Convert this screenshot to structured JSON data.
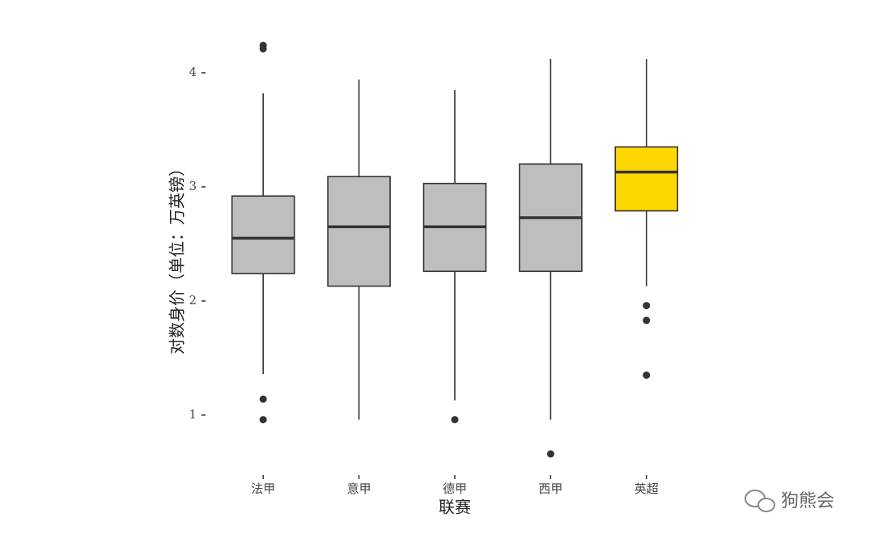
{
  "chart_data": {
    "type": "boxplot",
    "y_label": "对数身价（单位：万英镑）",
    "x_label": "联赛",
    "watermark": "狗熊会",
    "categories": [
      "法甲",
      "意甲",
      "德甲",
      "西甲",
      "英超"
    ],
    "boxes": [
      {
        "color": "#bebebe",
        "whisker_low": 1.36,
        "q1": 2.24,
        "median": 2.55,
        "q3": 2.92,
        "whisker_high": 3.82,
        "outliers": [
          4.24,
          4.21,
          1.14,
          0.96
        ]
      },
      {
        "color": "#bebebe",
        "whisker_low": 0.96,
        "q1": 2.13,
        "median": 2.65,
        "q3": 3.09,
        "whisker_high": 3.94,
        "outliers": []
      },
      {
        "color": "#bebebe",
        "whisker_low": 1.13,
        "q1": 2.26,
        "median": 2.65,
        "q3": 3.03,
        "whisker_high": 3.85,
        "outliers": [
          0.96
        ]
      },
      {
        "color": "#bebebe",
        "whisker_low": 0.96,
        "q1": 2.26,
        "median": 2.73,
        "q3": 3.2,
        "whisker_high": 4.12,
        "outliers": [
          0.66
        ]
      },
      {
        "color": "#ffd700",
        "whisker_low": 2.13,
        "q1": 2.79,
        "median": 3.13,
        "q3": 3.35,
        "whisker_high": 4.12,
        "outliers": [
          1.96,
          1.83,
          1.35
        ]
      }
    ],
    "ylim": [
      0.55,
      4.35
    ],
    "yticks": [
      1,
      2,
      3,
      4
    ]
  }
}
